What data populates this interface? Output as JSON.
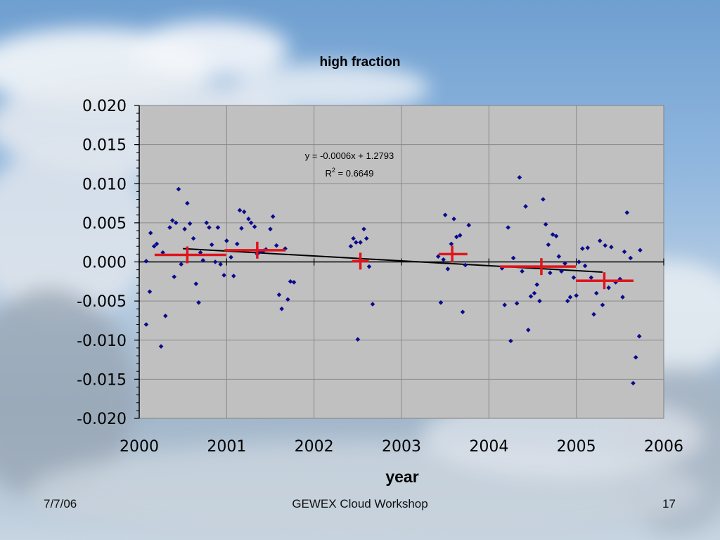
{
  "footer": {
    "date": "7/7/06",
    "center": "GEWEX Cloud Workshop",
    "page": "17"
  },
  "colors": {
    "plot_background": "#c0c0c0",
    "grid": "#8a8a8a",
    "points": "#0a0a8c",
    "binned_mean": "#e0141c",
    "trend_line": "#000000"
  },
  "chart_data": {
    "type": "scatter",
    "title": "high fraction",
    "xlabel": "year",
    "ylabel": "",
    "xlim": [
      2000,
      2006
    ],
    "ylim": [
      -0.02,
      0.02
    ],
    "x_ticks": [
      "2000",
      "2001",
      "2002",
      "2003",
      "2004",
      "2005",
      "2006"
    ],
    "y_ticks": [
      "0.020",
      "0.015",
      "0.010",
      "0.005",
      "0.000",
      "-0.005",
      "-0.010",
      "-0.015",
      "-0.020"
    ],
    "grid": true,
    "legend": "none",
    "trendline": {
      "equation": "y = -0.0006x + 1.2793",
      "r2_label": "R",
      "r2_sup": "2",
      "r2_value": " = 0.6649",
      "x_start": 2000.5,
      "x_end": 2005.3,
      "y_start": 0.0017,
      "y_end": -0.0013
    },
    "series": [
      {
        "points": [
          [
            2000.08,
            -0.008
          ],
          [
            2000.08,
            0.0001
          ],
          [
            2000.12,
            -0.0038
          ],
          [
            2000.13,
            0.0037
          ],
          [
            2000.17,
            0.002
          ],
          [
            2000.2,
            0.0023
          ],
          [
            2000.25,
            -0.0108
          ],
          [
            2000.27,
            0.0012
          ],
          [
            2000.3,
            -0.0069
          ],
          [
            2000.35,
            0.0044
          ],
          [
            2000.38,
            0.0053
          ],
          [
            2000.4,
            -0.0019
          ],
          [
            2000.42,
            0.005
          ],
          [
            2000.45,
            0.0093
          ],
          [
            2000.48,
            -0.0003
          ],
          [
            2000.52,
            0.0042
          ],
          [
            2000.55,
            0.0075
          ],
          [
            2000.58,
            0.0049
          ],
          [
            2000.62,
            0.003
          ],
          [
            2000.65,
            -0.0028
          ],
          [
            2000.68,
            -0.0052
          ],
          [
            2000.7,
            0.0012
          ],
          [
            2000.73,
            0.0002
          ],
          [
            2000.77,
            0.005
          ],
          [
            2000.8,
            0.0044
          ],
          [
            2000.83,
            0.0022
          ],
          [
            2000.87,
            0.0
          ],
          [
            2000.9,
            0.0044
          ],
          [
            2000.93,
            -0.0003
          ],
          [
            2000.97,
            -0.0017
          ],
          [
            2001.0,
            0.0027
          ],
          [
            2001.05,
            0.0006
          ],
          [
            2001.08,
            -0.0018
          ],
          [
            2001.12,
            0.0023
          ],
          [
            2001.15,
            0.0066
          ],
          [
            2001.17,
            0.0043
          ],
          [
            2001.2,
            0.0064
          ],
          [
            2001.25,
            0.0055
          ],
          [
            2001.28,
            0.005
          ],
          [
            2001.32,
            0.0045
          ],
          [
            2001.35,
            0.001
          ],
          [
            2001.38,
            0.0013
          ],
          [
            2001.42,
            0.0014
          ],
          [
            2001.45,
            0.0016
          ],
          [
            2001.5,
            0.0042
          ],
          [
            2001.53,
            0.0058
          ],
          [
            2001.57,
            0.0021
          ],
          [
            2001.6,
            -0.0042
          ],
          [
            2001.63,
            -0.006
          ],
          [
            2001.67,
            0.0017
          ],
          [
            2001.7,
            -0.0048
          ],
          [
            2001.73,
            -0.0025
          ],
          [
            2001.77,
            -0.0026
          ],
          [
            2002.42,
            0.002
          ],
          [
            2002.45,
            0.003
          ],
          [
            2002.48,
            0.0025
          ],
          [
            2002.5,
            -0.0099
          ],
          [
            2002.53,
            0.0025
          ],
          [
            2002.57,
            0.0042
          ],
          [
            2002.6,
            0.003
          ],
          [
            2002.63,
            -0.0006
          ],
          [
            2002.67,
            -0.0054
          ],
          [
            2003.42,
            0.0007
          ],
          [
            2003.45,
            -0.0052
          ],
          [
            2003.48,
            0.0003
          ],
          [
            2003.5,
            0.006
          ],
          [
            2003.53,
            -0.0009
          ],
          [
            2003.57,
            0.0023
          ],
          [
            2003.6,
            0.0055
          ],
          [
            2003.63,
            0.0032
          ],
          [
            2003.67,
            0.0034
          ],
          [
            2003.7,
            -0.0064
          ],
          [
            2003.73,
            -0.0004
          ],
          [
            2003.77,
            0.0047
          ],
          [
            2004.15,
            -0.0008
          ],
          [
            2004.18,
            -0.0055
          ],
          [
            2004.22,
            0.0044
          ],
          [
            2004.25,
            -0.0101
          ],
          [
            2004.28,
            0.0005
          ],
          [
            2004.32,
            -0.0053
          ],
          [
            2004.35,
            0.0108
          ],
          [
            2004.38,
            -0.0012
          ],
          [
            2004.42,
            0.0071
          ],
          [
            2004.45,
            -0.0087
          ],
          [
            2004.48,
            -0.0044
          ],
          [
            2004.52,
            -0.004
          ],
          [
            2004.55,
            -0.0029
          ],
          [
            2004.58,
            -0.005
          ],
          [
            2004.62,
            0.008
          ],
          [
            2004.65,
            0.0048
          ],
          [
            2004.68,
            0.0022
          ],
          [
            2004.7,
            -0.0014
          ],
          [
            2004.73,
            0.0035
          ],
          [
            2004.77,
            0.0033
          ],
          [
            2004.8,
            0.0007
          ],
          [
            2004.83,
            -0.0012
          ],
          [
            2004.87,
            -0.0002
          ],
          [
            2004.9,
            -0.005
          ],
          [
            2004.93,
            -0.0045
          ],
          [
            2004.97,
            -0.002
          ],
          [
            2005.0,
            -0.0043
          ],
          [
            2005.03,
            0.0
          ],
          [
            2005.07,
            0.0017
          ],
          [
            2005.1,
            -0.0005
          ],
          [
            2005.13,
            0.0018
          ],
          [
            2005.17,
            -0.002
          ],
          [
            2005.2,
            -0.0067
          ],
          [
            2005.23,
            -0.004
          ],
          [
            2005.27,
            0.0027
          ],
          [
            2005.3,
            -0.0055
          ],
          [
            2005.33,
            0.0021
          ],
          [
            2005.37,
            -0.0033
          ],
          [
            2005.4,
            0.0019
          ],
          [
            2005.45,
            -0.0026
          ],
          [
            2005.5,
            -0.0022
          ],
          [
            2005.53,
            -0.0045
          ],
          [
            2005.55,
            0.0013
          ],
          [
            2005.58,
            0.0063
          ],
          [
            2005.62,
            0.0005
          ],
          [
            2005.65,
            -0.0155
          ],
          [
            2005.68,
            -0.0122
          ],
          [
            2005.72,
            -0.0095
          ],
          [
            2005.73,
            0.0015
          ]
        ]
      },
      {
        "type": "binned_mean",
        "points": [
          {
            "x": 2000.55,
            "y": 0.0009,
            "x_from": 2000.2,
            "x_to": 2000.97
          },
          {
            "x": 2001.35,
            "y": 0.0015,
            "x_from": 2001.0,
            "x_to": 2001.65
          },
          {
            "x": 2002.53,
            "y": 0.0001,
            "x_from": 2002.53,
            "x_to": 2002.53
          },
          {
            "x": 2003.58,
            "y": 0.001,
            "x_from": 2003.45,
            "x_to": 2003.73
          },
          {
            "x": 2004.6,
            "y": -0.0006,
            "x_from": 2004.15,
            "x_to": 2004.97
          },
          {
            "x": 2005.32,
            "y": -0.0024,
            "x_from": 2005.02,
            "x_to": 2005.63
          }
        ]
      }
    ]
  }
}
